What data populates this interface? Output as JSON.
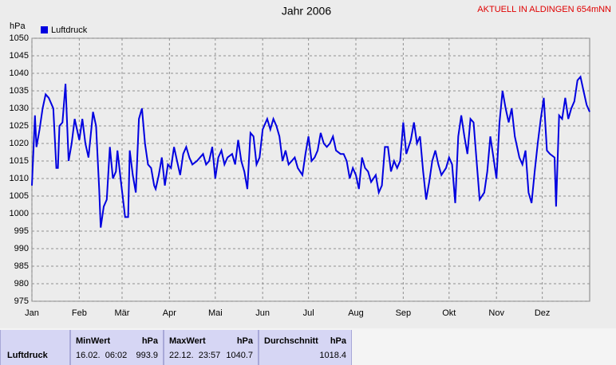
{
  "chart_data": {
    "type": "line",
    "title": "Jahr 2006",
    "annotation": "AKTUELL IN ALDINGEN 654mNN",
    "y_label": "hPa",
    "x": [
      0,
      2,
      3,
      5,
      7,
      9,
      11,
      14,
      16,
      17,
      18,
      20,
      22,
      24,
      26,
      28,
      29,
      31,
      33,
      35,
      37,
      40,
      42,
      44,
      45,
      47,
      49,
      51,
      53,
      55,
      56,
      58,
      61,
      63,
      64,
      66,
      68,
      70,
      72,
      74,
      76,
      78,
      80,
      81,
      83,
      85,
      87,
      89,
      91,
      93,
      95,
      97,
      99,
      101,
      103,
      105,
      108,
      110,
      112,
      114,
      116,
      118,
      120,
      122,
      124,
      126,
      128,
      131,
      133,
      135,
      137,
      139,
      141,
      143,
      145,
      147,
      149,
      151,
      154,
      156,
      158,
      160,
      162,
      164,
      166,
      168,
      170,
      172,
      174,
      177,
      179,
      181,
      183,
      185,
      187,
      189,
      191,
      193,
      195,
      197,
      199,
      202,
      204,
      206,
      208,
      210,
      212,
      214,
      216,
      218,
      220,
      222,
      225,
      227,
      229,
      231,
      233,
      235,
      237,
      239,
      241,
      243,
      245,
      248,
      250,
      252,
      254,
      256,
      258,
      260,
      262,
      264,
      266,
      268,
      271,
      273,
      275,
      277,
      279,
      281,
      283,
      285,
      287,
      289,
      291,
      293,
      296,
      298,
      300,
      302,
      304,
      306,
      308,
      310,
      312,
      314,
      316,
      319,
      321,
      323,
      325,
      327,
      329,
      331,
      333,
      335,
      337,
      339,
      342,
      343,
      345,
      347,
      349,
      351,
      353,
      355,
      357,
      359,
      361,
      363,
      365
    ],
    "series": [
      {
        "name": "Luftdruck",
        "color": "#0000e0",
        "values": [
          1008,
          1028,
          1019,
          1024,
          1030,
          1034,
          1033,
          1030,
          1013,
          1013,
          1025,
          1026,
          1037,
          1015,
          1020,
          1027,
          1025,
          1021,
          1027,
          1020,
          1016,
          1029,
          1025,
          1007,
          996,
          1002,
          1004,
          1019,
          1010,
          1012,
          1018,
          1010,
          999,
          999,
          1018,
          1011,
          1006,
          1027,
          1030,
          1020,
          1014,
          1013,
          1008,
          1007,
          1011,
          1016,
          1008,
          1014,
          1013,
          1019,
          1015,
          1011,
          1017,
          1019,
          1016,
          1014,
          1015,
          1016,
          1017,
          1014,
          1015,
          1019,
          1010,
          1016,
          1018,
          1014,
          1016,
          1017,
          1014,
          1021,
          1015,
          1012,
          1007,
          1023,
          1022,
          1014,
          1016,
          1024,
          1027,
          1024,
          1027,
          1025,
          1022,
          1015,
          1018,
          1014,
          1015,
          1016,
          1013,
          1011,
          1017,
          1022,
          1015,
          1016,
          1018,
          1023,
          1020,
          1019,
          1020,
          1022,
          1018,
          1017,
          1017,
          1015,
          1010,
          1013,
          1011,
          1007,
          1016,
          1013,
          1012,
          1009,
          1011,
          1006,
          1008,
          1019,
          1019,
          1012,
          1015,
          1013,
          1015,
          1026,
          1017,
          1021,
          1026,
          1020,
          1022,
          1012,
          1004,
          1009,
          1015,
          1018,
          1014,
          1011,
          1013,
          1016,
          1014,
          1003,
          1022,
          1028,
          1022,
          1017,
          1027,
          1026,
          1015,
          1004,
          1006,
          1012,
          1022,
          1016,
          1010,
          1026,
          1035,
          1030,
          1026,
          1030,
          1022,
          1016,
          1014,
          1018,
          1006,
          1003,
          1012,
          1020,
          1027,
          1033,
          1018,
          1017,
          1016,
          1002,
          1028,
          1027,
          1033,
          1027,
          1030,
          1032,
          1038,
          1039,
          1035,
          1031,
          1029
        ]
      }
    ],
    "xlim": [
      0,
      365
    ],
    "xticks": [
      {
        "value": 0,
        "label": "Jan"
      },
      {
        "value": 31,
        "label": "Feb"
      },
      {
        "value": 59,
        "label": "Mär"
      },
      {
        "value": 90,
        "label": "Apr"
      },
      {
        "value": 120,
        "label": "Mai"
      },
      {
        "value": 151,
        "label": "Jun"
      },
      {
        "value": 181,
        "label": "Jul"
      },
      {
        "value": 212,
        "label": "Aug"
      },
      {
        "value": 243,
        "label": "Sep"
      },
      {
        "value": 273,
        "label": "Okt"
      },
      {
        "value": 304,
        "label": "Nov"
      },
      {
        "value": 334,
        "label": "Dez"
      }
    ],
    "ylim": [
      975,
      1050
    ],
    "yticks": [
      975,
      980,
      985,
      990,
      995,
      1000,
      1005,
      1010,
      1015,
      1020,
      1025,
      1030,
      1035,
      1040,
      1045,
      1050
    ],
    "grid": true,
    "legend": "top-left"
  },
  "table": {
    "columns": [
      {
        "name": "MinWert",
        "unit": "hPa"
      },
      {
        "name": "MaxWert",
        "unit": "hPa"
      },
      {
        "name": "Durchschnitt",
        "unit": "hPa"
      }
    ],
    "rows": [
      {
        "label": "Luftdruck",
        "cells": [
          {
            "date": "16.02.  06:02",
            "value": "993.9"
          },
          {
            "date": "22.12.  23:57",
            "value": "1040.7"
          },
          {
            "date": "",
            "value": "1018.4"
          }
        ]
      }
    ]
  }
}
